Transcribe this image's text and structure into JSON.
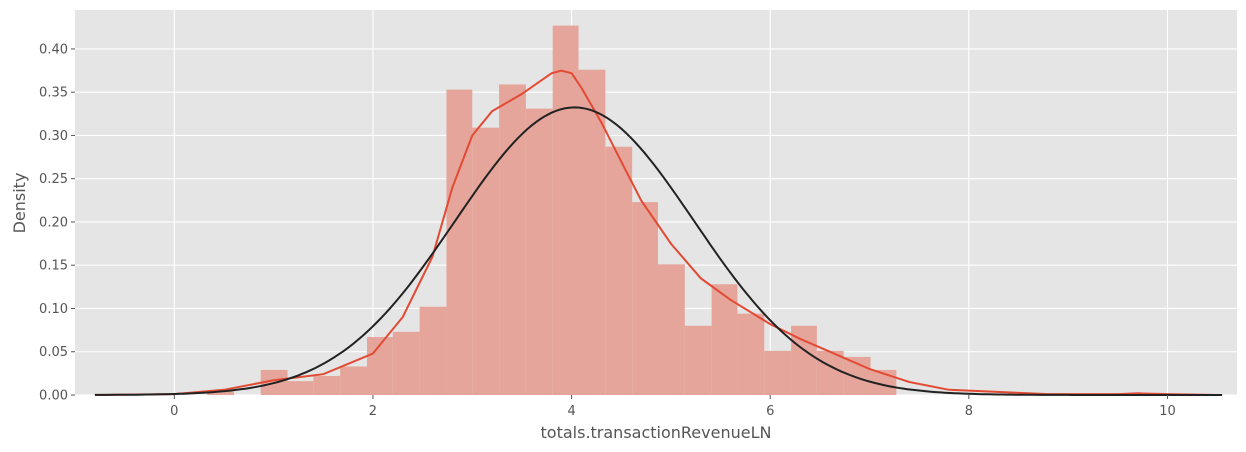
{
  "chart_data": {
    "type": "histogram",
    "xlabel": "totals.transactionRevenueLN",
    "ylabel": "Density",
    "xlim": [
      -1.0,
      10.7
    ],
    "ylim": [
      0,
      0.445
    ],
    "xticks": [
      0,
      2,
      4,
      6,
      8,
      10
    ],
    "yticks": [
      0.0,
      0.05,
      0.1,
      0.15,
      0.2,
      0.25,
      0.3,
      0.35,
      0.4
    ],
    "xtick_labels": [
      "0",
      "2",
      "4",
      "6",
      "8",
      "10"
    ],
    "ytick_labels": [
      "0.00",
      "0.05",
      "0.10",
      "0.15",
      "0.20",
      "0.25",
      "0.30",
      "0.35",
      "0.40"
    ],
    "grid": true,
    "colors": {
      "background": "#e5e5e5",
      "hist": "#e5a59b",
      "kde": "#e24a33",
      "normal_fit": "#222222"
    },
    "bins": [
      {
        "x0": 0.33,
        "x1": 0.6,
        "density": 0.004
      },
      {
        "x0": 0.87,
        "x1": 1.14,
        "density": 0.029
      },
      {
        "x0": 1.14,
        "x1": 1.4,
        "density": 0.016
      },
      {
        "x0": 1.4,
        "x1": 1.67,
        "density": 0.022
      },
      {
        "x0": 1.67,
        "x1": 1.94,
        "density": 0.033
      },
      {
        "x0": 1.94,
        "x1": 2.2,
        "density": 0.067
      },
      {
        "x0": 2.2,
        "x1": 2.47,
        "density": 0.073
      },
      {
        "x0": 2.47,
        "x1": 2.74,
        "density": 0.102
      },
      {
        "x0": 2.74,
        "x1": 3.0,
        "density": 0.353
      },
      {
        "x0": 3.0,
        "x1": 3.27,
        "density": 0.309
      },
      {
        "x0": 3.27,
        "x1": 3.54,
        "density": 0.359
      },
      {
        "x0": 3.54,
        "x1": 3.81,
        "density": 0.331
      },
      {
        "x0": 3.81,
        "x1": 4.07,
        "density": 0.427
      },
      {
        "x0": 4.07,
        "x1": 4.34,
        "density": 0.376
      },
      {
        "x0": 4.34,
        "x1": 4.61,
        "density": 0.287
      },
      {
        "x0": 4.61,
        "x1": 4.87,
        "density": 0.223
      },
      {
        "x0": 4.87,
        "x1": 5.14,
        "density": 0.151
      },
      {
        "x0": 5.14,
        "x1": 5.41,
        "density": 0.08
      },
      {
        "x0": 5.41,
        "x1": 5.67,
        "density": 0.128
      },
      {
        "x0": 5.67,
        "x1": 5.94,
        "density": 0.094
      },
      {
        "x0": 5.94,
        "x1": 6.21,
        "density": 0.051
      },
      {
        "x0": 6.21,
        "x1": 6.47,
        "density": 0.08
      },
      {
        "x0": 6.47,
        "x1": 6.74,
        "density": 0.051
      },
      {
        "x0": 6.74,
        "x1": 7.01,
        "density": 0.044
      },
      {
        "x0": 7.01,
        "x1": 7.27,
        "density": 0.029
      }
    ],
    "series": [
      {
        "type": "line",
        "x": [
          -0.8,
          0.0,
          0.5,
          1.0,
          1.5,
          2.0,
          2.3,
          2.6,
          2.8,
          3.0,
          3.2,
          3.5,
          3.8,
          3.9,
          4.0,
          4.1,
          4.3,
          4.5,
          4.7,
          5.0,
          5.3,
          5.6,
          6.0,
          6.3,
          6.6,
          7.0,
          7.4,
          7.8,
          8.2,
          8.8,
          9.5,
          9.7,
          10.0,
          10.5
        ],
        "y": [
          0.0,
          0.001,
          0.006,
          0.017,
          0.024,
          0.048,
          0.09,
          0.16,
          0.24,
          0.3,
          0.328,
          0.348,
          0.372,
          0.375,
          0.372,
          0.355,
          0.315,
          0.27,
          0.225,
          0.175,
          0.135,
          0.11,
          0.082,
          0.065,
          0.05,
          0.03,
          0.015,
          0.006,
          0.004,
          0.001,
          0.001,
          0.002,
          0.001,
          0.0
        ]
      },
      {
        "type": "line",
        "normal_fit": {
          "mean": 4.03,
          "std": 1.2
        },
        "x_range": [
          -0.8,
          10.55
        ]
      }
    ]
  }
}
